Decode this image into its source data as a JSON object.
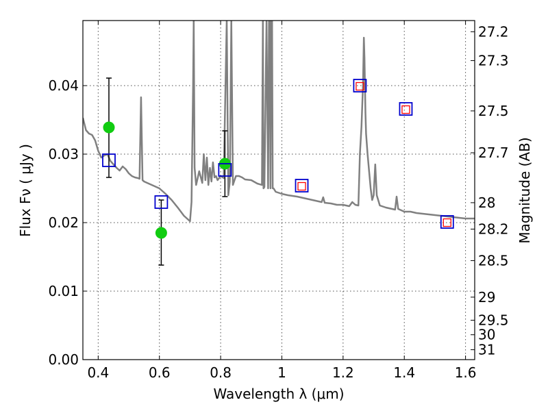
{
  "chart_data": {
    "type": "scatter",
    "title": "",
    "xlabel": "Wavelength  λ (μm)",
    "ylabel": "Flux  Fν  ( μJy )",
    "ylabel_right": "Magnitude (AB)",
    "xlim": [
      0.35,
      1.63
    ],
    "ylim": [
      0.0,
      0.0495
    ],
    "grid": true,
    "x_ticks": [
      {
        "value": 0.4,
        "label": "0.4"
      },
      {
        "value": 0.6,
        "label": "0.6"
      },
      {
        "value": 0.8,
        "label": "0.8"
      },
      {
        "value": 1.0,
        "label": "1"
      },
      {
        "value": 1.2,
        "label": "1.2"
      },
      {
        "value": 1.4,
        "label": "1.4"
      },
      {
        "value": 1.6,
        "label": "1.6"
      }
    ],
    "y_ticks": [
      {
        "value": 0.0,
        "label": "0.00"
      },
      {
        "value": 0.01,
        "label": "0.01"
      },
      {
        "value": 0.02,
        "label": "0.02"
      },
      {
        "value": 0.03,
        "label": "0.03"
      },
      {
        "value": 0.04,
        "label": "0.04"
      }
    ],
    "right_ticks": [
      {
        "mag": 27.2,
        "label": "27.2"
      },
      {
        "mag": 27.3,
        "label": "27.3"
      },
      {
        "mag": 27.5,
        "label": "27.5"
      },
      {
        "mag": 27.7,
        "label": "27.7"
      },
      {
        "mag": 28.0,
        "label": "28"
      },
      {
        "mag": 28.2,
        "label": "28.2"
      },
      {
        "mag": 28.5,
        "label": "28.5"
      },
      {
        "mag": 29.0,
        "label": "29"
      },
      {
        "mag": 29.5,
        "label": "29.5"
      },
      {
        "mag": 30.0,
        "label": "30"
      },
      {
        "mag": 31.0,
        "label": "31"
      }
    ],
    "series": [
      {
        "kind": "line",
        "color": "#808080",
        "x": [
          0.35,
          0.36,
          0.37,
          0.38,
          0.39,
          0.4,
          0.41,
          0.42,
          0.43,
          0.44,
          0.45,
          0.46,
          0.47,
          0.48,
          0.49,
          0.5,
          0.51,
          0.52,
          0.53,
          0.535,
          0.54,
          0.545,
          0.55,
          0.56,
          0.58,
          0.6,
          0.62,
          0.64,
          0.66,
          0.68,
          0.7,
          0.705,
          0.71,
          0.712,
          0.715,
          0.72,
          0.725,
          0.73,
          0.74,
          0.745,
          0.75,
          0.755,
          0.76,
          0.765,
          0.77,
          0.775,
          0.78,
          0.785,
          0.79,
          0.8,
          0.81,
          0.82,
          0.825,
          0.83,
          0.835,
          0.84,
          0.85,
          0.86,
          0.87,
          0.88,
          0.9,
          0.92,
          0.935,
          0.938,
          0.94,
          0.943,
          0.95,
          0.955,
          0.958,
          0.96,
          0.963,
          0.965,
          0.968,
          0.97,
          0.973,
          0.98,
          1.0,
          1.02,
          1.05,
          1.08,
          1.1,
          1.12,
          1.13,
          1.135,
          1.14,
          1.16,
          1.18,
          1.2,
          1.22,
          1.23,
          1.24,
          1.25,
          1.255,
          1.26,
          1.265,
          1.268,
          1.27,
          1.273,
          1.275,
          1.28,
          1.29,
          1.295,
          1.3,
          1.305,
          1.31,
          1.32,
          1.34,
          1.36,
          1.37,
          1.375,
          1.38,
          1.39,
          1.4,
          1.42,
          1.44,
          1.46,
          1.48,
          1.5,
          1.52,
          1.54,
          1.56,
          1.58,
          1.6,
          1.62,
          1.63
        ],
        "y": [
          0.0353,
          0.0335,
          0.033,
          0.0328,
          0.032,
          0.0305,
          0.0295,
          0.0298,
          0.03,
          0.029,
          0.0285,
          0.028,
          0.0276,
          0.0282,
          0.0278,
          0.0272,
          0.0268,
          0.0266,
          0.0265,
          0.0264,
          0.0383,
          0.0262,
          0.026,
          0.0258,
          0.0254,
          0.025,
          0.0242,
          0.0233,
          0.0222,
          0.021,
          0.0202,
          0.023,
          0.04,
          0.0495,
          0.028,
          0.0255,
          0.0265,
          0.0275,
          0.0258,
          0.03,
          0.0262,
          0.0295,
          0.0255,
          0.028,
          0.026,
          0.0288,
          0.0266,
          0.0268,
          0.0262,
          0.0268,
          0.0265,
          0.0495,
          0.024,
          0.026,
          0.0495,
          0.0255,
          0.0268,
          0.0268,
          0.0266,
          0.0263,
          0.0262,
          0.0257,
          0.0255,
          0.0495,
          0.025,
          0.0252,
          0.0495,
          0.025,
          0.0495,
          0.0495,
          0.025,
          0.0495,
          0.0495,
          0.025,
          0.025,
          0.0245,
          0.0242,
          0.024,
          0.0238,
          0.0235,
          0.0233,
          0.0231,
          0.023,
          0.0237,
          0.0229,
          0.0228,
          0.0226,
          0.0226,
          0.0224,
          0.023,
          0.0226,
          0.0225,
          0.03,
          0.034,
          0.04,
          0.047,
          0.044,
          0.036,
          0.033,
          0.03,
          0.025,
          0.0233,
          0.024,
          0.0285,
          0.024,
          0.0225,
          0.0222,
          0.022,
          0.0219,
          0.0238,
          0.022,
          0.0218,
          0.0216,
          0.0216,
          0.0214,
          0.0213,
          0.0212,
          0.0211,
          0.021,
          0.0209,
          0.0208,
          0.0207,
          0.0206,
          0.0206,
          0.0206
        ]
      },
      {
        "kind": "errorbar",
        "marker": "circle",
        "color": "#11cc11",
        "points": [
          {
            "x": 0.435,
            "y": 0.0339,
            "err_lo": 0.0073,
            "err_hi": 0.0072
          },
          {
            "x": 0.606,
            "y": 0.0185,
            "err_lo": 0.0047,
            "err_hi": 0.0048
          },
          {
            "x": 0.814,
            "y": 0.0286,
            "err_lo": 0.0048,
            "err_hi": 0.0048
          }
        ]
      },
      {
        "kind": "scatter",
        "marker": "square",
        "color": "#0000cc",
        "points": [
          {
            "x": 0.435,
            "y": 0.0291
          },
          {
            "x": 0.606,
            "y": 0.023
          },
          {
            "x": 0.814,
            "y": 0.0277
          },
          {
            "x": 1.065,
            "y": 0.0254
          },
          {
            "x": 1.255,
            "y": 0.04
          },
          {
            "x": 1.405,
            "y": 0.0366
          },
          {
            "x": 1.54,
            "y": 0.0201
          }
        ]
      },
      {
        "kind": "scatter",
        "marker": "square-small",
        "color": "#ff0000",
        "points": [
          {
            "x": 1.065,
            "y": 0.0253
          },
          {
            "x": 1.255,
            "y": 0.0399
          },
          {
            "x": 1.405,
            "y": 0.0365
          },
          {
            "x": 1.54,
            "y": 0.02
          }
        ]
      }
    ]
  }
}
